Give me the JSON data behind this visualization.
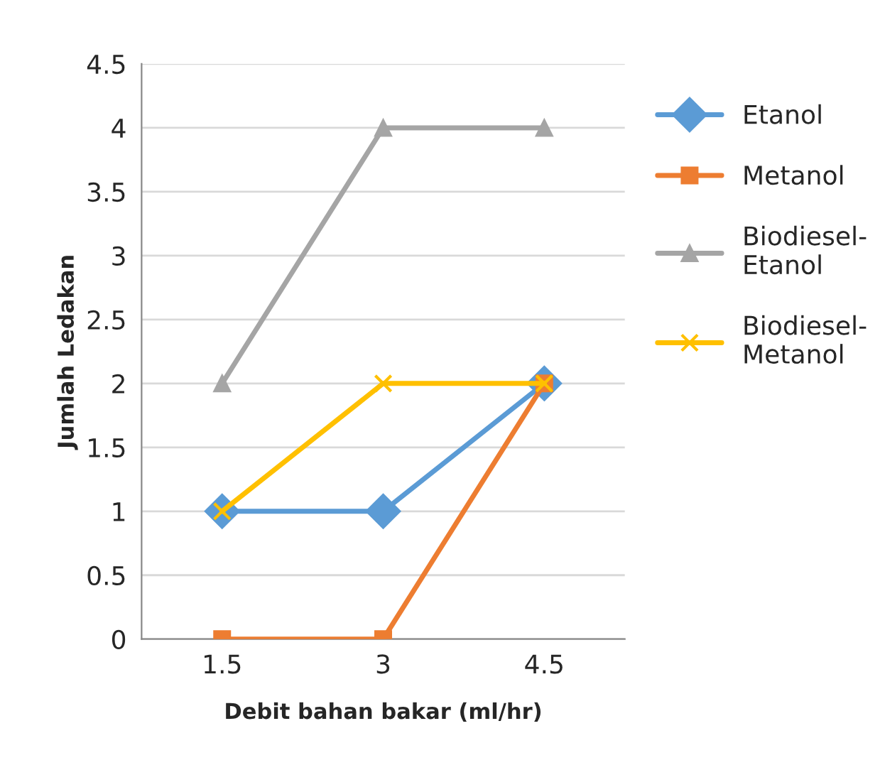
{
  "chart_data": {
    "type": "line",
    "xlabel": "Debit bahan bakar (ml/hr)",
    "ylabel": "Jumlah Ledakan",
    "categories": [
      "1.5",
      "3",
      "4.5"
    ],
    "series": [
      {
        "name": "Etanol",
        "color": "#5b9bd5",
        "marker": "diamond",
        "values": [
          1,
          1,
          2
        ]
      },
      {
        "name": "Metanol",
        "color": "#ed7d31",
        "marker": "square",
        "values": [
          0,
          0,
          2
        ]
      },
      {
        "name": "Biodiesel-Etanol",
        "color": "#a5a5a5",
        "marker": "triangle",
        "values": [
          2,
          4,
          4
        ]
      },
      {
        "name": "Biodiesel-Metanol",
        "color": "#ffc000",
        "marker": "cross",
        "values": [
          1,
          2,
          2
        ]
      }
    ],
    "ylim": [
      0,
      4.5
    ],
    "yticks": [
      0,
      0.5,
      1,
      1.5,
      2,
      2.5,
      3,
      3.5,
      4,
      4.5
    ],
    "grid": "y",
    "legend": "right",
    "line_style": "solid"
  }
}
